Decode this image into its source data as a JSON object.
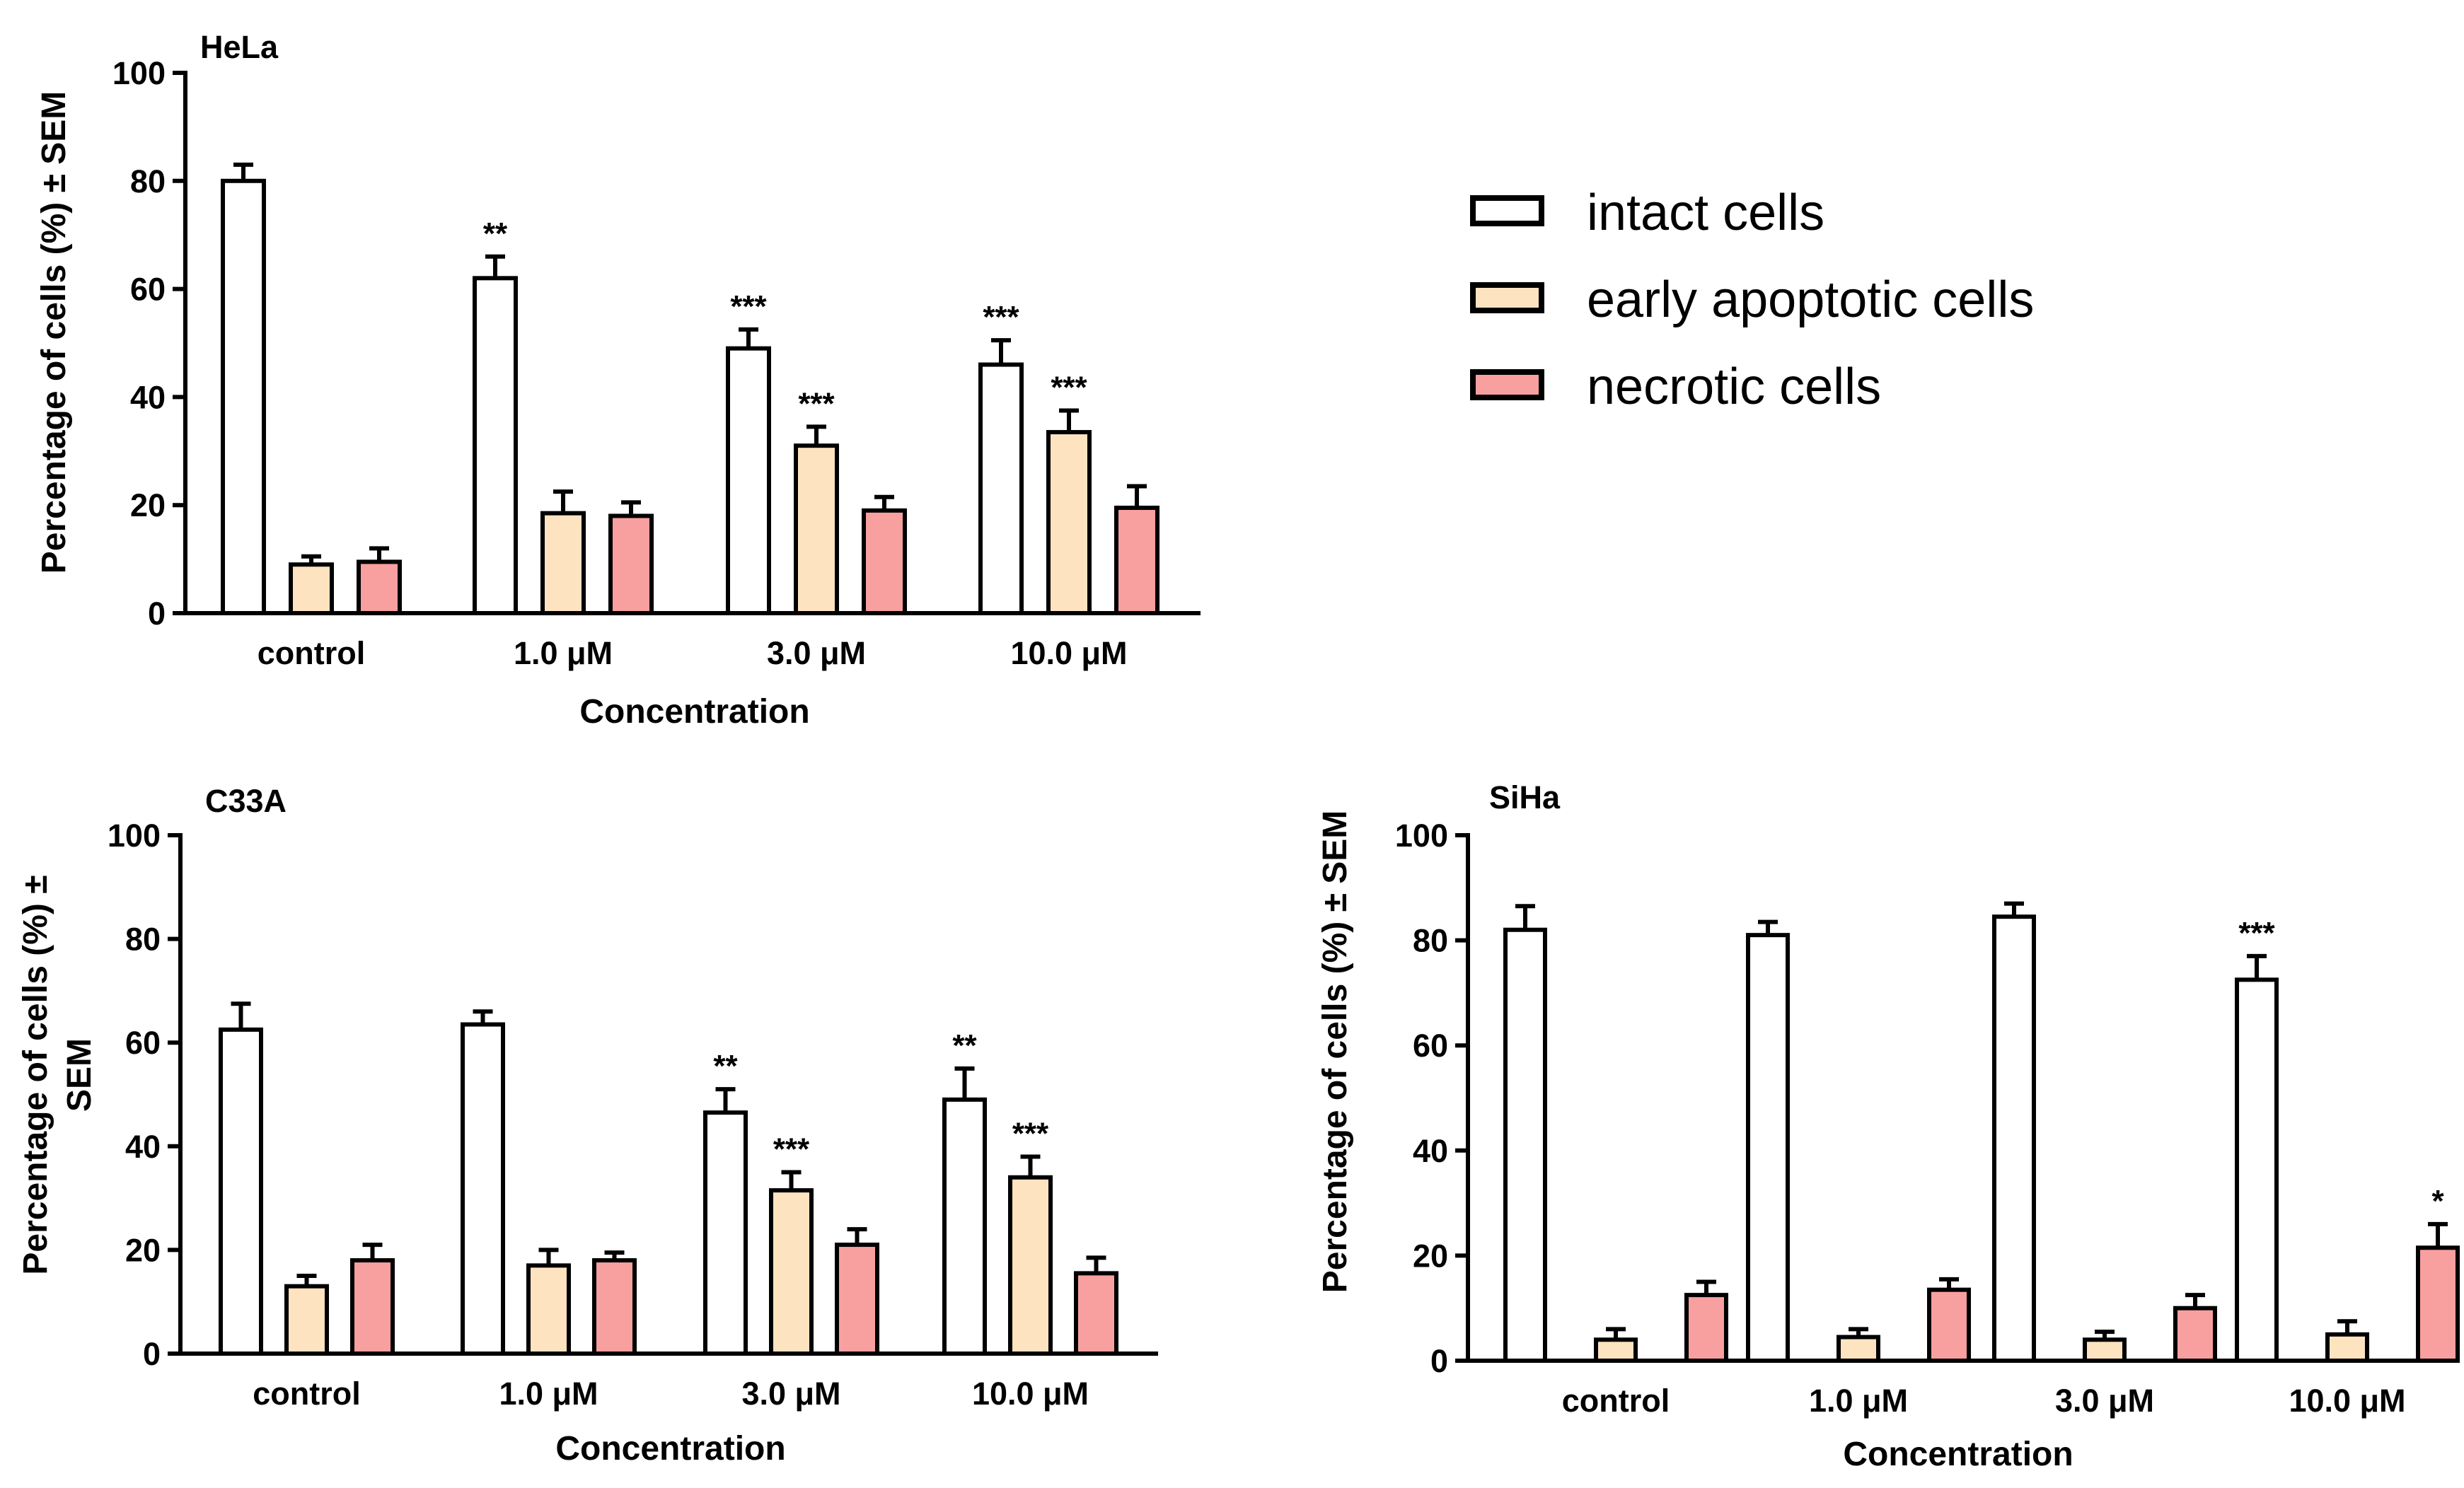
{
  "chart_data": [
    {
      "type": "bar",
      "title": "HeLa",
      "xlabel": "Concentration",
      "ylabel": "Percentage of cells (%) ± SEM",
      "ylim": [
        0,
        100
      ],
      "yticks": [
        "0",
        "20",
        "40",
        "60",
        "80",
        "100"
      ],
      "categories": [
        "control",
        "1.0 μM",
        "3.0 μM",
        "10.0 μM"
      ],
      "series": [
        {
          "name": "intact cells",
          "values": [
            80,
            62,
            49,
            46
          ],
          "errors": [
            3,
            4,
            3.5,
            4.5
          ],
          "significance": [
            "",
            "**",
            "***",
            "***"
          ]
        },
        {
          "name": "early apoptotic cells",
          "values": [
            9,
            18.5,
            31,
            33.5
          ],
          "errors": [
            1.5,
            4,
            3.5,
            4
          ],
          "significance": [
            "",
            "",
            "***",
            "***"
          ]
        },
        {
          "name": "necrotic cells",
          "values": [
            9.5,
            18,
            19,
            19.5
          ],
          "errors": [
            2.5,
            2.5,
            2.5,
            4
          ],
          "significance": [
            "",
            "",
            "",
            ""
          ]
        }
      ]
    },
    {
      "type": "bar",
      "title": "C33A",
      "xlabel": "Concentration",
      "ylabel_line1": "Percentage of cells (%) ±",
      "ylabel_line2": "SEM",
      "ylim": [
        0,
        100
      ],
      "yticks": [
        "0",
        "20",
        "40",
        "60",
        "80",
        "100"
      ],
      "categories": [
        "control",
        "1.0 μM",
        "3.0 μM",
        "10.0 μM"
      ],
      "series": [
        {
          "name": "intact cells",
          "values": [
            62.5,
            63.5,
            46.5,
            49
          ],
          "errors": [
            5,
            2.5,
            4.5,
            6
          ],
          "significance": [
            "",
            "",
            "**",
            "**"
          ]
        },
        {
          "name": "early apoptotic cells",
          "values": [
            13,
            17,
            31.5,
            34
          ],
          "errors": [
            2,
            3,
            3.5,
            4
          ],
          "significance": [
            "",
            "",
            "***",
            "***"
          ]
        },
        {
          "name": "necrotic cells",
          "values": [
            18,
            18,
            21,
            15.5
          ],
          "errors": [
            3,
            1.5,
            3,
            3
          ],
          "significance": [
            "",
            "",
            "",
            ""
          ]
        }
      ]
    },
    {
      "type": "bar",
      "title": "SiHa",
      "xlabel": "Concentration",
      "ylabel": "Percentage of cells (%) ± SEM",
      "ylim": [
        0,
        100
      ],
      "yticks": [
        "0",
        "20",
        "40",
        "60",
        "80",
        "100"
      ],
      "categories": [
        "control",
        "1.0 μM",
        "3.0 μM",
        "10.0 μM"
      ],
      "series": [
        {
          "name": "intact cells",
          "values": [
            82,
            81,
            84.5,
            72.5
          ],
          "errors": [
            4.5,
            2.5,
            2.5,
            4.5
          ],
          "significance": [
            "",
            "",
            "",
            "***"
          ]
        },
        {
          "name": "early apoptotic cells",
          "values": [
            4,
            4.5,
            4,
            5
          ],
          "errors": [
            2,
            1.5,
            1.5,
            2.5
          ],
          "significance": [
            "",
            "",
            "",
            ""
          ]
        },
        {
          "name": "necrotic cells",
          "values": [
            12.5,
            13.5,
            10,
            21.5
          ],
          "errors": [
            2.5,
            2,
            2.5,
            4.5
          ],
          "significance": [
            "",
            "",
            "",
            "*"
          ]
        }
      ]
    }
  ],
  "legend": [
    {
      "label": "intact cells",
      "color": "#ffffff"
    },
    {
      "label": "early apoptotic cells",
      "color": "#fde3c0"
    },
    {
      "label": "necrotic cells",
      "color": "#f8a0a0"
    }
  ],
  "colors": {
    "series": [
      "#ffffff",
      "#fde3c0",
      "#f8a0a0"
    ],
    "stroke": "#000000"
  }
}
